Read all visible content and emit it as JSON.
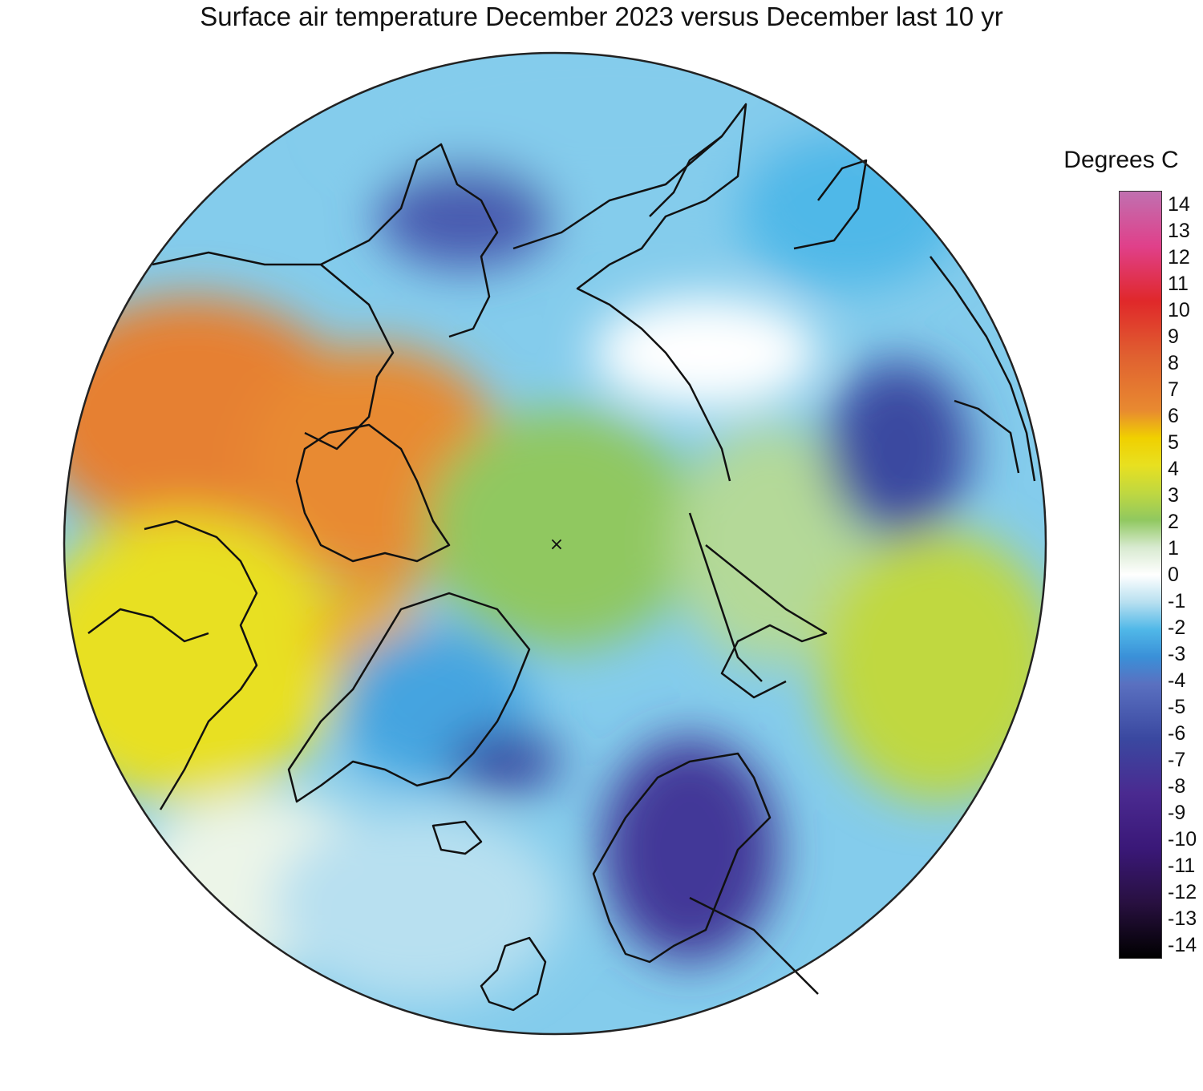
{
  "title": "Surface air temperature December 2023 versus December last 10 yr",
  "legend": {
    "title": "Degrees C",
    "ticks": [
      "14",
      "13",
      "12",
      "11",
      "10",
      "9",
      "8",
      "7",
      "6",
      "5",
      "4",
      "3",
      "2",
      "1",
      "0",
      "-1",
      "-2",
      "-3",
      "-4",
      "-5",
      "-6",
      "-7",
      "-8",
      "-9",
      "-10",
      "-11",
      "-12",
      "-13",
      "-14"
    ],
    "range": [
      -14,
      14
    ],
    "stops": [
      {
        "v": 14,
        "color": "#c070b0"
      },
      {
        "v": 12,
        "color": "#e0408a"
      },
      {
        "v": 10,
        "color": "#e0282a"
      },
      {
        "v": 8,
        "color": "#e06030"
      },
      {
        "v": 6,
        "color": "#e88a30"
      },
      {
        "v": 5,
        "color": "#f0d000"
      },
      {
        "v": 4,
        "color": "#e8e020"
      },
      {
        "v": 3,
        "color": "#c0d840"
      },
      {
        "v": 2,
        "color": "#90c860"
      },
      {
        "v": 1,
        "color": "#d8ead0"
      },
      {
        "v": 0,
        "color": "#ffffff"
      },
      {
        "v": -1,
        "color": "#b8e0f0"
      },
      {
        "v": -2,
        "color": "#50b8e8"
      },
      {
        "v": -3,
        "color": "#3a90d8"
      },
      {
        "v": -4,
        "color": "#5a70c0"
      },
      {
        "v": -6,
        "color": "#3a48a0"
      },
      {
        "v": -8,
        "color": "#4a2a90"
      },
      {
        "v": -10,
        "color": "#3a1878"
      },
      {
        "v": -12,
        "color": "#281040"
      },
      {
        "v": -14,
        "color": "#000000"
      }
    ]
  },
  "map": {
    "projection": "north-polar-stereographic",
    "pole_marker": "×",
    "anomaly_regions": [
      {
        "name": "alaska-western-canada",
        "value": 6.5
      },
      {
        "name": "western-canada-south",
        "value": 4
      },
      {
        "name": "canadian-archipelago",
        "value": 6
      },
      {
        "name": "baffin-bay-labrador",
        "value": 5.5
      },
      {
        "name": "central-arctic-ocean",
        "value": 2
      },
      {
        "name": "east-siberian-sea",
        "value": 0
      },
      {
        "name": "kara-barents-seas",
        "value": 1.5
      },
      {
        "name": "western-russia",
        "value": 3
      },
      {
        "name": "east-siberia",
        "value": -2
      },
      {
        "name": "chukotka",
        "value": -5
      },
      {
        "name": "central-siberia",
        "value": -6
      },
      {
        "name": "greenland",
        "value": -2.5
      },
      {
        "name": "greenland-east-coast",
        "value": -6
      },
      {
        "name": "north-atlantic",
        "value": -1
      },
      {
        "name": "scandinavia",
        "value": -7
      },
      {
        "name": "pacific",
        "value": -1.5
      },
      {
        "name": "hudson-bay-region",
        "value": 0.5
      }
    ]
  }
}
